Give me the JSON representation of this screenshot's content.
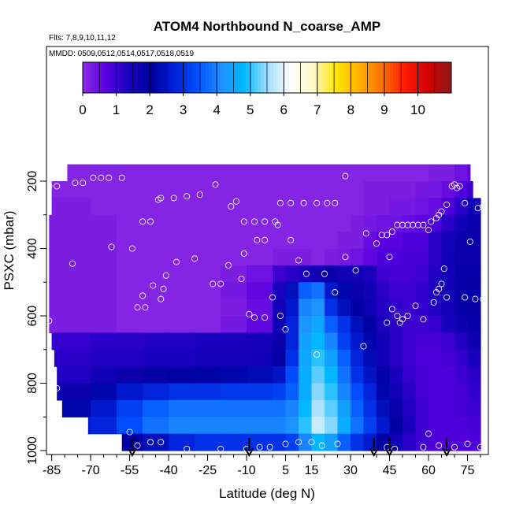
{
  "chart_data": {
    "type": "heatmap",
    "title": "ATOM4 Northbound N_coarse_AMP",
    "subtitle_flights": "Flts: 7,8,9,10,11,12",
    "subtitle_dates": "MMDD: 0509,0512,0514,0517,0518,0519",
    "xlabel": "Latitude (deg N)",
    "ylabel": "PSXC (mbar)",
    "xlim": [
      -87,
      82
    ],
    "ylim": [
      1010,
      130
    ],
    "x_ticks": [
      -85,
      -70,
      -55,
      -40,
      -25,
      -10,
      5,
      15,
      30,
      45,
      60,
      75
    ],
    "x_minor_step": 5,
    "y_ticks": [
      200,
      400,
      600,
      800,
      1000
    ],
    "y_minor_step": 100,
    "colorbar": {
      "range": [
        0,
        11
      ],
      "ticks": [
        0,
        1,
        2,
        3,
        4,
        5,
        6,
        7,
        8,
        9,
        10
      ],
      "colors": [
        "#8a2be2",
        "#5a00e0",
        "#1a00c0",
        "#0000a0",
        "#0020d8",
        "#0050ff",
        "#1e90ff",
        "#00b8ff",
        "#9fdcff",
        "#ffffff",
        "#fffac8",
        "#ffe600",
        "#ffb000",
        "#ff7000",
        "#ff1a00",
        "#d00000",
        "#8b1a1a"
      ]
    },
    "pressure_levels": [
      175,
      225,
      275,
      325,
      375,
      425,
      475,
      525,
      575,
      625,
      675,
      725,
      775,
      825,
      875,
      925,
      975
    ],
    "level_lat_extent": [
      [
        -79,
        76
      ],
      [
        -85,
        77
      ],
      [
        -85,
        80
      ],
      [
        -86,
        81
      ],
      [
        -86,
        81
      ],
      [
        -86,
        81
      ],
      [
        -86,
        81
      ],
      [
        -86,
        81
      ],
      [
        -86,
        81
      ],
      [
        -86,
        81
      ],
      [
        -85,
        81
      ],
      [
        -84,
        81
      ],
      [
        -83,
        81
      ],
      [
        -83,
        81
      ],
      [
        -81,
        81
      ],
      [
        -71,
        81
      ],
      [
        -58,
        81
      ]
    ],
    "lat_bins": [
      -87,
      -80,
      -70,
      -60,
      -50,
      -40,
      -30,
      -20,
      -10,
      0,
      5,
      10,
      15,
      20,
      25,
      30,
      35,
      40,
      45,
      50,
      55,
      60,
      65,
      70,
      75,
      80
    ],
    "values": [
      [
        0.1,
        0.1,
        0.1,
        0.1,
        0.1,
        0.1,
        0.1,
        0.1,
        0.1,
        0.1,
        0.1,
        0.1,
        0.1,
        0.1,
        0.1,
        0.1,
        0.1,
        0.1,
        0.1,
        0.1,
        0.1,
        0.2,
        0.2,
        0.4,
        0.6
      ],
      [
        0.1,
        0.1,
        0.1,
        0.1,
        0.1,
        0.1,
        0.1,
        0.1,
        0.1,
        0.1,
        0.1,
        0.1,
        0.1,
        0.1,
        0.1,
        0.1,
        0.2,
        0.2,
        0.2,
        0.2,
        0.3,
        0.3,
        0.5,
        0.8,
        1.0
      ],
      [
        0.2,
        0.2,
        0.1,
        0.1,
        0.1,
        0.1,
        0.1,
        0.1,
        0.1,
        0.1,
        0.1,
        0.1,
        0.1,
        0.1,
        0.1,
        0.1,
        0.2,
        0.2,
        0.3,
        0.3,
        0.4,
        0.5,
        0.8,
        1.2,
        1.6
      ],
      [
        0.2,
        0.2,
        0.2,
        0.1,
        0.1,
        0.1,
        0.1,
        0.1,
        0.1,
        0.1,
        0.1,
        0.1,
        0.1,
        0.1,
        0.1,
        0.2,
        0.3,
        0.4,
        0.4,
        0.5,
        0.6,
        0.8,
        1.2,
        1.6,
        1.8
      ],
      [
        0.2,
        0.2,
        0.2,
        0.1,
        0.1,
        0.1,
        0.1,
        0.1,
        0.1,
        0.1,
        0.1,
        0.1,
        0.1,
        0.1,
        0.2,
        0.2,
        0.5,
        0.7,
        0.7,
        0.8,
        0.8,
        1.2,
        1.5,
        1.8,
        1.8
      ],
      [
        0.2,
        0.2,
        0.2,
        0.1,
        0.1,
        0.1,
        0.1,
        0.1,
        0.1,
        0.2,
        0.2,
        0.2,
        0.1,
        0.2,
        0.3,
        0.4,
        0.6,
        0.8,
        0.8,
        0.9,
        0.9,
        1.2,
        1.6,
        1.8,
        1.8
      ],
      [
        0.2,
        0.2,
        0.2,
        0.1,
        0.1,
        0.1,
        0.1,
        0.2,
        0.4,
        1.0,
        1.2,
        1.4,
        1.6,
        1.8,
        1.6,
        1.6,
        1.4,
        1.0,
        0.9,
        0.9,
        1.0,
        1.3,
        1.6,
        1.9,
        1.9
      ],
      [
        0.2,
        0.2,
        0.2,
        0.1,
        0.1,
        0.1,
        0.1,
        0.3,
        0.6,
        1.4,
        2.4,
        3.6,
        3.8,
        2.6,
        2.2,
        1.8,
        1.6,
        1.2,
        1.0,
        1.0,
        1.1,
        1.3,
        1.6,
        1.9,
        1.9
      ],
      [
        0.2,
        0.2,
        0.2,
        0.1,
        0.1,
        0.1,
        0.1,
        0.2,
        0.5,
        1.5,
        2.6,
        4.0,
        4.2,
        3.0,
        2.4,
        2.0,
        1.7,
        1.3,
        1.1,
        1.0,
        1.1,
        1.3,
        1.6,
        1.9,
        1.9
      ],
      [
        0.2,
        0.2,
        0.2,
        0.1,
        0.1,
        0.1,
        0.1,
        0.3,
        0.6,
        1.6,
        2.8,
        4.2,
        4.5,
        3.6,
        3.0,
        2.4,
        2.0,
        1.4,
        1.2,
        1.0,
        1.0,
        1.1,
        1.4,
        1.7,
        1.9
      ],
      [
        1.1,
        1.1,
        1.2,
        1.2,
        1.3,
        1.3,
        1.4,
        1.4,
        1.5,
        1.8,
        2.8,
        4.4,
        4.8,
        4.0,
        3.2,
        2.6,
        2.2,
        1.6,
        1.2,
        1.0,
        0.9,
        0.9,
        1.0,
        1.3,
        1.7
      ],
      [
        1.2,
        1.2,
        1.3,
        1.3,
        1.4,
        1.4,
        1.5,
        1.5,
        1.6,
        2.0,
        3.0,
        4.5,
        5.0,
        4.4,
        3.6,
        2.8,
        2.3,
        1.6,
        1.2,
        1.0,
        0.8,
        0.8,
        0.9,
        1.1,
        1.4
      ],
      [
        1.3,
        1.3,
        1.6,
        1.8,
        1.9,
        2.0,
        2.1,
        2.2,
        2.3,
        2.5,
        3.4,
        4.6,
        5.2,
        4.8,
        3.8,
        3.0,
        2.5,
        1.9,
        1.4,
        1.1,
        0.9,
        0.8,
        0.8,
        1.0,
        1.2
      ],
      [
        1.8,
        1.8,
        2.2,
        2.6,
        2.8,
        3.0,
        3.0,
        3.1,
        3.1,
        3.2,
        3.6,
        4.6,
        5.4,
        5.0,
        4.0,
        3.4,
        2.8,
        2.2,
        1.6,
        1.2,
        0.9,
        0.8,
        0.8,
        0.9,
        1.1
      ],
      [
        2.2,
        2.2,
        2.6,
        3.2,
        3.6,
        3.8,
        3.8,
        3.8,
        3.8,
        3.8,
        4.0,
        4.8,
        5.6,
        5.2,
        4.4,
        3.6,
        3.0,
        2.4,
        1.8,
        1.3,
        1.0,
        0.8,
        0.8,
        0.9,
        1.0
      ],
      [
        2.6,
        2.6,
        2.8,
        3.4,
        3.8,
        4.0,
        4.0,
        4.0,
        4.0,
        4.0,
        4.2,
        5.0,
        5.8,
        5.4,
        4.6,
        3.8,
        3.2,
        2.6,
        2.0,
        1.4,
        1.0,
        0.8,
        0.8,
        0.8,
        0.9
      ],
      [
        1.6,
        1.6,
        1.8,
        2.0,
        2.4,
        2.8,
        3.0,
        3.0,
        3.0,
        3.0,
        3.2,
        4.0,
        4.8,
        4.4,
        3.6,
        3.0,
        2.6,
        2.0,
        1.6,
        1.2,
        1.0,
        0.8,
        0.8,
        0.8,
        0.8
      ]
    ],
    "sample_points": [
      [
        -86,
        215
      ],
      [
        -83,
        215
      ],
      [
        -76,
        205
      ],
      [
        -73,
        205
      ],
      [
        -69,
        190
      ],
      [
        -66,
        190
      ],
      [
        -63,
        190
      ],
      [
        -58,
        190
      ],
      [
        -44,
        255
      ],
      [
        -43,
        250
      ],
      [
        -38,
        250
      ],
      [
        -33,
        245
      ],
      [
        -28,
        240
      ],
      [
        -22,
        210
      ],
      [
        -16,
        275
      ],
      [
        -14,
        260
      ],
      [
        -11,
        320
      ],
      [
        -7,
        320
      ],
      [
        -3,
        320
      ],
      [
        1,
        320
      ],
      [
        3,
        265
      ],
      [
        7,
        265
      ],
      [
        12,
        265
      ],
      [
        17,
        265
      ],
      [
        21,
        265
      ],
      [
        24,
        265
      ],
      [
        28,
        185
      ],
      [
        -50,
        320
      ],
      [
        -47,
        320
      ],
      [
        -54,
        400
      ],
      [
        -62,
        395
      ],
      [
        -77,
        445
      ],
      [
        -41,
        480
      ],
      [
        -37,
        440
      ],
      [
        -30,
        430
      ],
      [
        -23,
        505
      ],
      [
        -20,
        505
      ],
      [
        -17,
        450
      ],
      [
        -12,
        490
      ],
      [
        -11,
        415
      ],
      [
        -6,
        375
      ],
      [
        -3,
        375
      ],
      [
        2,
        330
      ],
      [
        7,
        375
      ],
      [
        10,
        435
      ],
      [
        13,
        475
      ],
      [
        20,
        475
      ],
      [
        24,
        530
      ],
      [
        28,
        425
      ],
      [
        32,
        465
      ],
      [
        36,
        355
      ],
      [
        40,
        385
      ],
      [
        42,
        360
      ],
      [
        44,
        360
      ],
      [
        45,
        425
      ],
      [
        46,
        350
      ],
      [
        48,
        330
      ],
      [
        50,
        330
      ],
      [
        52,
        330
      ],
      [
        54,
        330
      ],
      [
        56,
        330
      ],
      [
        58,
        330
      ],
      [
        60,
        345
      ],
      [
        61,
        320
      ],
      [
        63,
        310
      ],
      [
        64,
        300
      ],
      [
        65,
        290
      ],
      [
        67,
        270
      ],
      [
        69,
        215
      ],
      [
        70,
        210
      ],
      [
        71,
        220
      ],
      [
        72,
        215
      ],
      [
        74,
        265
      ],
      [
        76,
        380
      ],
      [
        79,
        280
      ],
      [
        81,
        275
      ],
      [
        62,
        560
      ],
      [
        63,
        530
      ],
      [
        64,
        520
      ],
      [
        65,
        505
      ],
      [
        66,
        460
      ],
      [
        67,
        545
      ],
      [
        74,
        545
      ],
      [
        78,
        550
      ],
      [
        81,
        550
      ],
      [
        -52,
        575
      ],
      [
        -49,
        575
      ],
      [
        -46,
        510
      ],
      [
        -42,
        520
      ],
      [
        -50,
        540
      ],
      [
        -43,
        550
      ],
      [
        -9,
        595
      ],
      [
        -7,
        605
      ],
      [
        -3,
        605
      ],
      [
        0,
        545
      ],
      [
        3,
        600
      ],
      [
        5,
        640
      ],
      [
        44,
        620
      ],
      [
        46,
        580
      ],
      [
        48,
        600
      ],
      [
        49,
        620
      ],
      [
        50,
        610
      ],
      [
        52,
        600
      ],
      [
        55,
        570
      ],
      [
        58,
        610
      ],
      [
        -86,
        615
      ],
      [
        -83,
        815
      ],
      [
        -55,
        945
      ],
      [
        -52,
        985
      ],
      [
        -47,
        975
      ],
      [
        -43,
        975
      ],
      [
        -33,
        995
      ],
      [
        -20,
        995
      ],
      [
        -10,
        995
      ],
      [
        -5,
        990
      ],
      [
        -1,
        990
      ],
      [
        5,
        980
      ],
      [
        10,
        975
      ],
      [
        15,
        975
      ],
      [
        19,
        985
      ],
      [
        25,
        980
      ],
      [
        35,
        690
      ],
      [
        44,
        990
      ],
      [
        47,
        995
      ],
      [
        58,
        990
      ],
      [
        60,
        950
      ],
      [
        64,
        985
      ],
      [
        70,
        990
      ],
      [
        75,
        980
      ],
      [
        80,
        990
      ],
      [
        17,
        715
      ]
    ],
    "arrow_lats": [
      -54,
      -9,
      39,
      45,
      67
    ]
  }
}
